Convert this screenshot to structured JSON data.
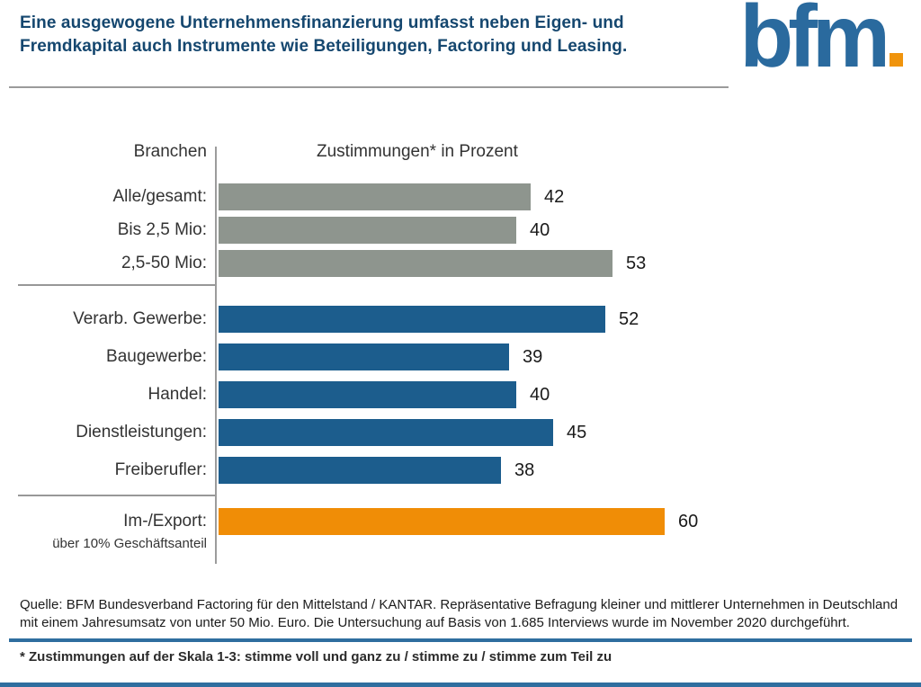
{
  "header": {
    "title_line1": "Eine ausgewogene Unternehmensfinanzierung umfasst neben Eigen- und",
    "title_line2": "Fremdkapital auch Instrumente wie Beteiligungen, Factoring und Leasing.",
    "logo_text": "bfm"
  },
  "chart": {
    "col_header_left": "Branchen",
    "col_header_right": "Zustimmungen* in Prozent",
    "groups": [
      {
        "color": "#8e958e",
        "rows": [
          {
            "label": "Alle/gesamt:",
            "value": 42
          },
          {
            "label": "Bis 2,5 Mio:",
            "value": 40
          },
          {
            "label": "2,5-50 Mio:",
            "value": 53
          }
        ]
      },
      {
        "color": "#1c5d8d",
        "rows": [
          {
            "label": "Verarb. Gewerbe:",
            "value": 52
          },
          {
            "label": "Baugewerbe:",
            "value": 39
          },
          {
            "label": "Handel:",
            "value": 40
          },
          {
            "label": "Dienstleistungen:",
            "value": 45
          },
          {
            "label": "Freiberufler:",
            "value": 38
          }
        ]
      },
      {
        "color": "#f08d06",
        "rows": [
          {
            "label": "Im-/Export:",
            "sublabel": "über 10% Geschäftsanteil",
            "value": 60
          }
        ]
      }
    ]
  },
  "chart_data": {
    "type": "bar",
    "orientation": "horizontal",
    "title": "Zustimmungen* in Prozent",
    "ylabel": "Branchen",
    "xlabel": "Zustimmungen* in Prozent",
    "xlim": [
      0,
      95
    ],
    "grid": false,
    "legend": false,
    "categories": [
      "Alle/gesamt:",
      "Bis 2,5 Mio:",
      "2,5-50 Mio:",
      "Verarb. Gewerbe:",
      "Baugewerbe:",
      "Handel:",
      "Dienstleistungen:",
      "Freiberufler:",
      "Im-/Export: über 10% Geschäftsanteil"
    ],
    "values": [
      42,
      40,
      53,
      52,
      39,
      40,
      45,
      38,
      60
    ],
    "bar_colors": [
      "#8e958e",
      "#8e958e",
      "#8e958e",
      "#1c5d8d",
      "#1c5d8d",
      "#1c5d8d",
      "#1c5d8d",
      "#1c5d8d",
      "#f08d06"
    ],
    "annotations": [
      "42",
      "40",
      "53",
      "52",
      "39",
      "40",
      "45",
      "38",
      "60"
    ]
  },
  "colors": {
    "title_navy": "#15476f",
    "logo_blue": "#2a6a9e",
    "logo_dot_orange": "#f0940c",
    "bar_gray": "#8e958e",
    "bar_blue": "#1c5d8d",
    "bar_orange": "#f08d06",
    "rule_blue": "#2f6e9f",
    "separator_gray": "#9c9c9c"
  },
  "footer": {
    "source_text": "Quelle: BFM Bundesverband Factoring für den Mittelstand / KANTAR. Repräsentative Befragung kleiner und mittlerer Unternehmen in Deutschland mit einem Jahresumsatz von unter 50 Mio. Euro. Die Untersuchung auf Basis von 1.685 Interviews wurde im November 2020 durchgeführt.",
    "footnote": "* Zustimmungen auf der Skala 1-3: stimme voll und ganz zu / stimme zu / stimme zum Teil zu"
  }
}
